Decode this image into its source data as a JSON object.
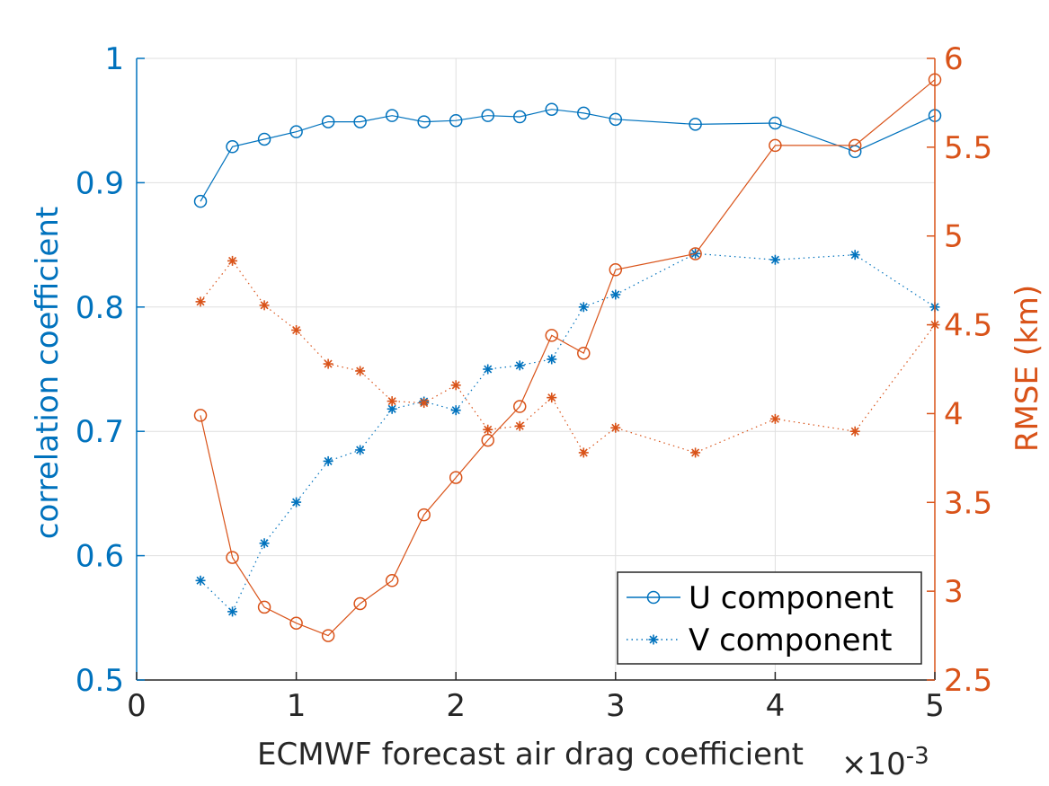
{
  "chart_data": {
    "type": "line",
    "xlabel": "ECMWF forecast air drag coefficient",
    "x_exponent_label": "×10",
    "x_exponent_power": "-3",
    "ylabel_left": "correlation coefficient",
    "ylabel_right": "RMSE (km)",
    "xlim": [
      0,
      5
    ],
    "ylim_left": [
      0.5,
      1
    ],
    "ylim_right": [
      2.5,
      6
    ],
    "x_ticks": [
      "0",
      "1",
      "2",
      "3",
      "4",
      "5"
    ],
    "y_left_ticks": [
      "0.5",
      "0.6",
      "0.7",
      "0.8",
      "0.9",
      "1"
    ],
    "y_right_ticks": [
      "2.5",
      "3",
      "3.5",
      "4",
      "4.5",
      "5",
      "5.5",
      "6"
    ],
    "grid": true,
    "legend_placement": "bottom-right",
    "colors": {
      "blue": "#0072BD",
      "orange": "#D95319",
      "axis": "#262626",
      "grid": "#dfdfdf"
    },
    "x": [
      0.4,
      0.6,
      0.8,
      1.0,
      1.2,
      1.4,
      1.6,
      1.8,
      2.0,
      2.2,
      2.4,
      2.6,
      2.8,
      3.0,
      3.5,
      4.0,
      4.5,
      5.0
    ],
    "series": [
      {
        "name": "U component",
        "axis": "left",
        "marker": "circle",
        "line": "solid",
        "color": "#0072BD",
        "values": [
          0.885,
          0.929,
          0.935,
          0.941,
          0.949,
          0.949,
          0.954,
          0.949,
          0.95,
          0.954,
          0.953,
          0.959,
          0.956,
          0.951,
          0.947,
          0.948,
          0.925,
          0.954
        ]
      },
      {
        "name": "V component",
        "axis": "left",
        "marker": "asterisk",
        "line": "dotted",
        "color": "#0072BD",
        "values": [
          0.58,
          0.555,
          0.61,
          0.643,
          0.676,
          0.685,
          0.718,
          0.724,
          0.717,
          0.75,
          0.753,
          0.758,
          0.8,
          0.81,
          0.843,
          0.838,
          0.842,
          0.8
        ]
      },
      {
        "name": "",
        "axis": "right",
        "marker": "circle",
        "line": "solid",
        "color": "#D95319",
        "values": [
          3.99,
          3.19,
          2.91,
          2.82,
          2.75,
          2.93,
          3.06,
          3.43,
          3.64,
          3.85,
          4.04,
          4.44,
          4.34,
          4.81,
          4.9,
          5.51,
          5.51,
          5.88
        ]
      },
      {
        "name": "",
        "axis": "right",
        "marker": "asterisk",
        "line": "dotted",
        "color": "#D95319",
        "values": [
          4.63,
          4.86,
          4.61,
          4.47,
          4.28,
          4.24,
          4.07,
          4.06,
          4.16,
          3.91,
          3.93,
          4.09,
          3.78,
          3.92,
          3.78,
          3.97,
          3.9,
          4.5
        ]
      }
    ]
  }
}
